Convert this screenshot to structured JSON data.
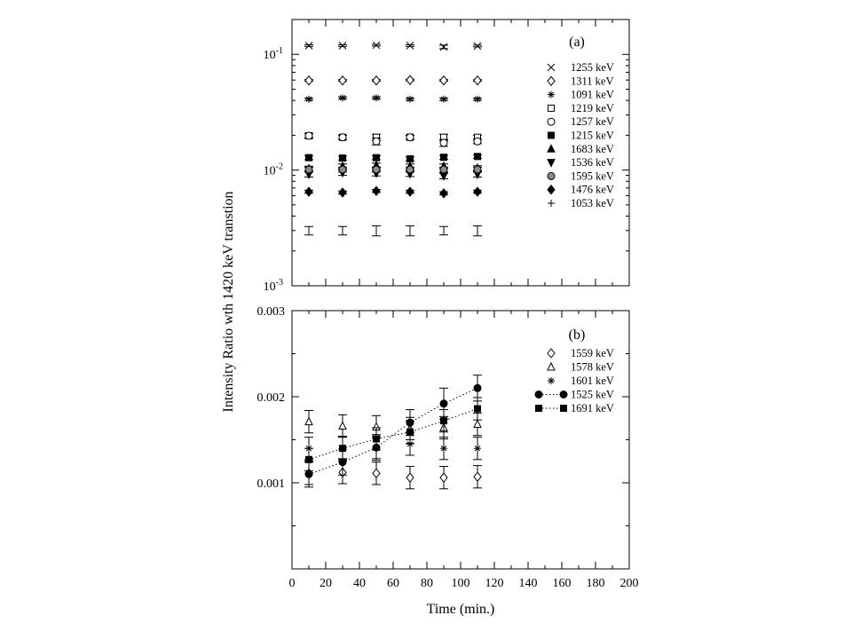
{
  "chart_data": [
    {
      "id": "a",
      "type": "scatter",
      "panel_label": "(a)",
      "yscale": "log",
      "xlim": [
        0,
        200
      ],
      "ylim": [
        0.001,
        0.2
      ],
      "y_ticks": [
        {
          "value": 0.1,
          "base": "10",
          "exp": "-1"
        },
        {
          "value": 0.01,
          "base": "10",
          "exp": "-2"
        },
        {
          "value": 0.001,
          "base": "10",
          "exp": "-3"
        }
      ],
      "legend_position": "top-right",
      "x": [
        10,
        30,
        50,
        70,
        90,
        110
      ],
      "series": [
        {
          "name": "1255 keV",
          "marker": "x",
          "values": [
            0.119,
            0.119,
            0.12,
            0.119,
            0.116,
            0.118
          ],
          "err": [
            0.002,
            0.002,
            0.002,
            0.002,
            0.004,
            0.002
          ]
        },
        {
          "name": "1311 keV",
          "marker": "diamond-open",
          "values": [
            0.0595,
            0.0595,
            0.0595,
            0.06,
            0.0595,
            0.0595
          ],
          "err": [
            0.001,
            0.001,
            0.001,
            0.001,
            0.001,
            0.001
          ]
        },
        {
          "name": "1091 keV",
          "marker": "asterisk",
          "values": [
            0.041,
            0.042,
            0.042,
            0.041,
            0.041,
            0.041
          ],
          "err": [
            0.001,
            0.001,
            0.001,
            0.001,
            0.001,
            0.001
          ]
        },
        {
          "name": "1219 keV",
          "marker": "square-open",
          "values": [
            0.0198,
            0.0192,
            0.0192,
            0.0192,
            0.0192,
            0.0192
          ],
          "err": [
            0.001,
            0.0008,
            0.0012,
            0.0008,
            0.0012,
            0.0008
          ]
        },
        {
          "name": "1257 keV",
          "marker": "circle-open",
          "values": [
            0.0198,
            0.0192,
            0.0177,
            0.0192,
            0.0172,
            0.0177
          ],
          "err": [
            0.0008,
            0.0008,
            0.0012,
            0.0008,
            0.0012,
            0.0008
          ]
        },
        {
          "name": "1215 keV",
          "marker": "square-filled",
          "values": [
            0.0128,
            0.0127,
            0.0128,
            0.0125,
            0.0129,
            0.0131
          ],
          "err": [
            0.0005,
            0.0005,
            0.0005,
            0.0005,
            0.0005,
            0.0005
          ]
        },
        {
          "name": "1683 keV",
          "marker": "triangle-up-filled",
          "values": [
            0.0103,
            0.0108,
            0.011,
            0.0108,
            0.0108,
            0.0104
          ],
          "err": [
            0.0005,
            0.0005,
            0.0005,
            0.0005,
            0.0005,
            0.0005
          ]
        },
        {
          "name": "1536 keV",
          "marker": "triangle-down-filled",
          "values": [
            0.0092,
            0.0095,
            0.0094,
            0.0093,
            0.0089,
            0.0092
          ],
          "err": [
            0.0005,
            0.0005,
            0.0005,
            0.0005,
            0.0005,
            0.0005
          ]
        },
        {
          "name": "1595 keV",
          "marker": "circle-gray",
          "values": [
            0.0101,
            0.0101,
            0.0101,
            0.0101,
            0.0101,
            0.0101
          ],
          "err": [
            0.0005,
            0.0005,
            0.0005,
            0.0005,
            0.0005,
            0.0005
          ]
        },
        {
          "name": "1476 keV",
          "marker": "diamond-filled",
          "values": [
            0.0065,
            0.0064,
            0.0066,
            0.0065,
            0.0063,
            0.0065
          ],
          "err": [
            0.0002,
            0.0002,
            0.0002,
            0.0002,
            0.0002,
            0.0002
          ]
        },
        {
          "name": "1053 keV",
          "marker": "plus",
          "values": [
            0.003,
            0.003,
            0.003,
            0.003,
            0.003,
            0.003
          ],
          "err": [
            0.00025,
            0.00025,
            0.0003,
            0.0003,
            0.00025,
            0.0003
          ]
        }
      ]
    },
    {
      "id": "b",
      "type": "scatter",
      "panel_label": "(b)",
      "yscale": "linear",
      "xlim": [
        0,
        200
      ],
      "ylim": [
        0,
        0.003
      ],
      "y_ticks": [
        {
          "value": 0.001,
          "label": "0.001"
        },
        {
          "value": 0.002,
          "label": "0.002"
        },
        {
          "value": 0.003,
          "label": "0.003"
        }
      ],
      "x_ticks": [
        "0",
        "20",
        "40",
        "60",
        "80",
        "100",
        "120",
        "140",
        "160",
        "180",
        "200"
      ],
      "xlabel": "Time (min.)",
      "legend_position": "top-right",
      "x": [
        10,
        30,
        50,
        70,
        90,
        110
      ],
      "series": [
        {
          "name": "1559 keV",
          "marker": "diamond-open",
          "connected": false,
          "values": [
            0.00111,
            0.00112,
            0.00111,
            0.00106,
            0.00106,
            0.00107
          ],
          "err": [
            0.00013,
            0.00013,
            0.00013,
            0.00013,
            0.00013,
            0.00013
          ]
        },
        {
          "name": "1578 keV",
          "marker": "triangle-up-open",
          "connected": false,
          "values": [
            0.00171,
            0.00166,
            0.00165,
            0.00163,
            0.00164,
            0.00168
          ],
          "err": [
            0.00013,
            0.00013,
            0.00013,
            0.00013,
            0.00013,
            0.00013
          ]
        },
        {
          "name": "1601 keV",
          "marker": "asterisk",
          "connected": false,
          "values": [
            0.0014,
            0.00141,
            0.00141,
            0.00145,
            0.0014,
            0.0014
          ],
          "err": [
            0.00013,
            0.00013,
            0.00013,
            0.00013,
            0.00013,
            0.00013
          ]
        },
        {
          "name": "1525 keV",
          "marker": "circle-filled",
          "connected": true,
          "values": [
            0.0011,
            0.00124,
            0.00141,
            0.0017,
            0.00192,
            0.0021
          ],
          "err": [
            0.00015,
            0.00015,
            0.00015,
            0.00015,
            0.00018,
            0.00015
          ]
        },
        {
          "name": "1691 keV",
          "marker": "square-filled",
          "connected": true,
          "values": [
            0.00127,
            0.0014,
            0.00151,
            0.00159,
            0.00172,
            0.00186
          ],
          "err": [
            0.00013,
            0.00013,
            0.00013,
            0.00013,
            0.00013,
            0.00013
          ]
        }
      ]
    }
  ],
  "shared_ylabel": "Intensity Ratio wth 1420 keV transtion"
}
